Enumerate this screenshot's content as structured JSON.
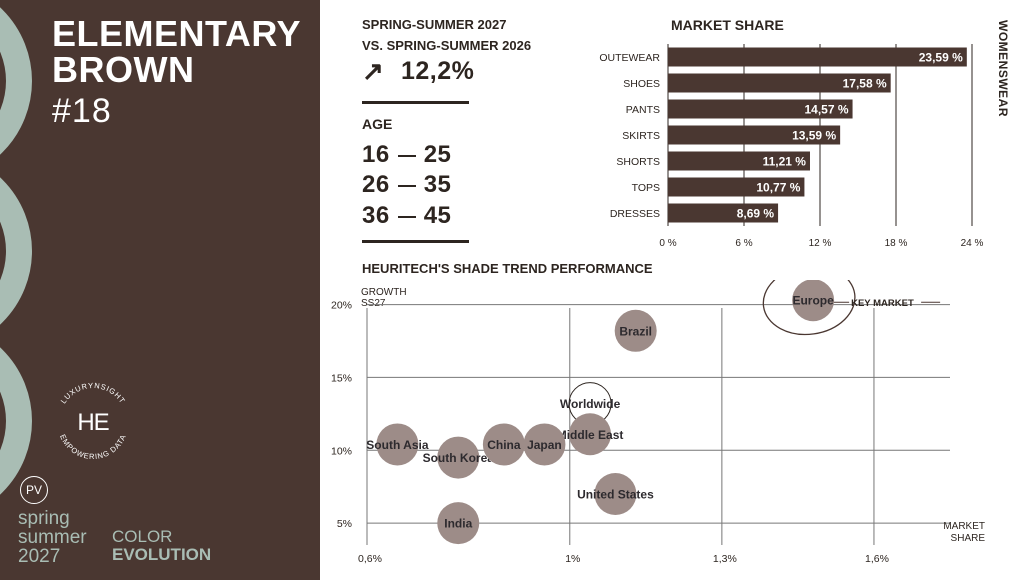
{
  "sidebar": {
    "color_name_line1": "ELEMENTARY",
    "color_name_line2": "BROWN",
    "color_number": "#18",
    "logo_top_text": "LUXURYNSIGHT",
    "logo_bottom_text": "EMPOWERING DATA",
    "logo_mark": "HE",
    "badge": "PV",
    "season_line1": "spring",
    "season_line2": "summer",
    "season_line3": "2027",
    "evolution_line1": "COLOR",
    "evolution_line2": "EVOLUTION"
  },
  "stats": {
    "season_line1": "SPRING-SUMMER 2027",
    "season_line2": "VS. SPRING-SUMMER 2026",
    "trend_arrow": "↗",
    "growth": "12,2%",
    "age_label": "AGE",
    "age_ranges": [
      {
        "from": "16",
        "to": "25"
      },
      {
        "from": "26",
        "to": "35"
      },
      {
        "from": "36",
        "to": "45"
      }
    ]
  },
  "colors": {
    "brown": "#4a3731",
    "sage": "#a9bdb4",
    "bar": "#4a3731",
    "bubble": "#9d8c88",
    "text": "#2d2520"
  },
  "chart_data": [
    {
      "type": "bar",
      "title": "MARKET SHARE",
      "side_label": "WOMENSWEAR",
      "categories": [
        "OUTEWEAR",
        "SHOES",
        "PANTS",
        "SKIRTS",
        "SHORTS",
        "TOPS",
        "DRESSES"
      ],
      "values": [
        23.59,
        17.58,
        14.57,
        13.59,
        11.21,
        10.77,
        8.69
      ],
      "value_labels": [
        "23,59 %",
        "17,58 %",
        "14,57 %",
        "13,59 %",
        "11,21 %",
        "10,77 %",
        "8,69 %"
      ],
      "xlim": [
        0,
        24
      ],
      "xticks": [
        0,
        6,
        12,
        18,
        24
      ],
      "xtick_labels": [
        "0 %",
        "6 %",
        "12 %",
        "18 %",
        "24 %"
      ]
    },
    {
      "type": "scatter",
      "title": "HEURITECH'S SHADE TREND PERFORMANCE",
      "ylabel_line1": "GROWTH",
      "ylabel_line2": "SS27",
      "xlabel_line1": "MARKET",
      "xlabel_line2": "SHARE",
      "xlim": [
        0.6,
        1.75
      ],
      "ylim": [
        3.5,
        21
      ],
      "xticks": [
        0.6,
        1.0,
        1.3,
        1.6
      ],
      "xtick_labels": [
        "0,6%",
        "1%",
        "1,3%",
        "1,6%"
      ],
      "yticks": [
        5,
        10,
        15,
        20
      ],
      "ytick_labels": [
        "5%",
        "10%",
        "15%",
        "20%"
      ],
      "key_market_label": "KEY MARKET",
      "points": [
        {
          "label": "Europe",
          "x": 1.48,
          "y": 20.3,
          "highlight": false,
          "key_market": true
        },
        {
          "label": "Brazil",
          "x": 1.13,
          "y": 18.2,
          "highlight": false,
          "key_market": false
        },
        {
          "label": "Worldwide",
          "x": 1.04,
          "y": 13.2,
          "highlight": true,
          "key_market": false
        },
        {
          "label": "Middle East",
          "x": 1.04,
          "y": 11.1,
          "highlight": false,
          "key_market": false
        },
        {
          "label": "South Asia",
          "x": 0.66,
          "y": 10.4,
          "highlight": false,
          "key_market": false
        },
        {
          "label": "South Korea",
          "x": 0.78,
          "y": 9.5,
          "highlight": false,
          "key_market": false
        },
        {
          "label": "China",
          "x": 0.87,
          "y": 10.4,
          "highlight": false,
          "key_market": false
        },
        {
          "label": "Japan",
          "x": 0.95,
          "y": 10.4,
          "highlight": false,
          "key_market": false
        },
        {
          "label": "United States",
          "x": 1.09,
          "y": 7.0,
          "highlight": false,
          "key_market": false
        },
        {
          "label": "India",
          "x": 0.78,
          "y": 5.0,
          "highlight": false,
          "key_market": false
        }
      ]
    }
  ]
}
